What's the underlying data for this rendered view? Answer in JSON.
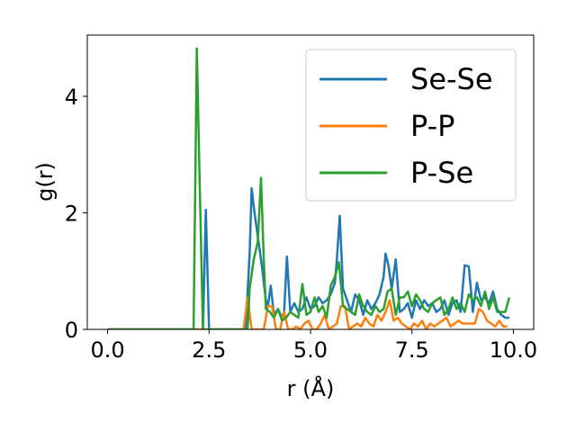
{
  "chart_data": {
    "type": "line",
    "title": "",
    "xlabel": "r (Å)",
    "ylabel": "g(r)",
    "xlim": [
      -0.5,
      10.5
    ],
    "ylim": [
      0,
      5.05
    ],
    "xticks": [
      "0.0",
      "2.5",
      "5.0",
      "7.5",
      "10.0"
    ],
    "xtick_values": [
      0,
      2.5,
      5,
      7.5,
      10
    ],
    "yticks": [
      "0",
      "2",
      "4"
    ],
    "ytick_values": [
      0,
      2,
      4
    ],
    "grid": false,
    "legend_position": "top-right",
    "series": [
      {
        "name": "Se-Se",
        "color": "#1f77b4",
        "x": [
          0,
          2.1,
          2.2,
          2.3,
          2.35,
          2.42,
          2.5,
          2.55,
          3.4,
          3.5,
          3.55,
          3.62,
          3.7,
          3.8,
          3.9,
          3.95,
          4.02,
          4.1,
          4.2,
          4.3,
          4.35,
          4.42,
          4.5,
          4.6,
          4.7,
          4.8,
          4.9,
          5.0,
          5.1,
          5.2,
          5.3,
          5.4,
          5.5,
          5.6,
          5.65,
          5.72,
          5.8,
          5.9,
          6.0,
          6.1,
          6.2,
          6.3,
          6.4,
          6.5,
          6.6,
          6.7,
          6.8,
          6.85,
          6.92,
          7.0,
          7.1,
          7.2,
          7.3,
          7.4,
          7.5,
          7.6,
          7.7,
          7.8,
          7.9,
          8.0,
          8.1,
          8.2,
          8.3,
          8.4,
          8.5,
          8.6,
          8.7,
          8.8,
          8.9,
          9.0,
          9.1,
          9.2,
          9.3,
          9.4,
          9.5,
          9.6,
          9.7,
          9.8,
          9.9
        ],
        "y": [
          0,
          0,
          0,
          0,
          0,
          2.05,
          0,
          0,
          0,
          1.3,
          2.42,
          2.0,
          1.6,
          1.1,
          0.5,
          0.4,
          0.75,
          0.25,
          0.35,
          0.2,
          0.3,
          1.25,
          0.3,
          0.45,
          0.3,
          0.35,
          0.55,
          0.35,
          0.4,
          0.55,
          0.45,
          0.5,
          0.6,
          0.8,
          1.2,
          1.95,
          0.7,
          0.5,
          0.3,
          0.6,
          0.5,
          0.25,
          0.5,
          0.35,
          0.45,
          0.6,
          0.9,
          1.3,
          1.1,
          0.7,
          1.2,
          0.3,
          0.35,
          0.45,
          0.2,
          0.5,
          0.35,
          0.5,
          0.4,
          0.45,
          0.3,
          0.35,
          0.5,
          0.25,
          0.45,
          0.5,
          0.3,
          1.1,
          1.08,
          0.3,
          0.8,
          0.5,
          0.55,
          0.45,
          0.65,
          0.35,
          0.25,
          0.2,
          0.2
        ]
      },
      {
        "name": "P-P",
        "color": "#ff7f0e",
        "x": [
          0,
          3.35,
          3.45,
          3.55,
          3.65,
          3.75,
          3.85,
          3.95,
          4.05,
          4.15,
          4.25,
          4.35,
          4.45,
          4.55,
          4.65,
          4.75,
          4.85,
          4.95,
          5.05,
          5.15,
          5.25,
          5.35,
          5.45,
          5.55,
          5.65,
          5.75,
          5.85,
          5.95,
          6.05,
          6.15,
          6.25,
          6.35,
          6.45,
          6.55,
          6.65,
          6.75,
          6.85,
          6.95,
          7.05,
          7.15,
          7.25,
          7.35,
          7.45,
          7.55,
          7.65,
          7.75,
          7.85,
          7.95,
          8.05,
          8.15,
          8.25,
          8.35,
          8.45,
          8.55,
          8.65,
          8.75,
          8.85,
          8.95,
          9.05,
          9.15,
          9.25,
          9.35,
          9.45,
          9.55,
          9.65,
          9.75,
          9.85
        ],
        "y": [
          0,
          0,
          0.55,
          0,
          0,
          0,
          0,
          0.4,
          0.4,
          0,
          0,
          0.3,
          0,
          0,
          0.05,
          0,
          0.1,
          0.15,
          0,
          0,
          0.1,
          0.25,
          0,
          0.05,
          0.1,
          0.4,
          0.4,
          0,
          0.05,
          0.1,
          0.05,
          0.2,
          0.1,
          0.05,
          0.25,
          0.15,
          0.3,
          0.5,
          0.15,
          0.2,
          0.1,
          0.05,
          0,
          0.1,
          0.05,
          0.15,
          0,
          0.1,
          0.05,
          0.1,
          0.15,
          0.2,
          0.05,
          0.1,
          0.15,
          0.1,
          0.1,
          0.1,
          0.1,
          0.35,
          0.3,
          0.15,
          0.1,
          0.05,
          0.15,
          0.05,
          0.05
        ]
      },
      {
        "name": "P-Se",
        "color": "#2ca02c",
        "x": [
          0,
          2.12,
          2.2,
          2.27,
          2.35,
          2.42,
          3.45,
          3.5,
          3.6,
          3.7,
          3.78,
          3.85,
          3.9,
          4.0,
          4.1,
          4.2,
          4.3,
          4.4,
          4.5,
          4.6,
          4.7,
          4.8,
          4.9,
          5.0,
          5.1,
          5.2,
          5.3,
          5.4,
          5.5,
          5.6,
          5.7,
          5.8,
          5.9,
          6.0,
          6.1,
          6.2,
          6.3,
          6.4,
          6.5,
          6.6,
          6.7,
          6.8,
          6.9,
          7.0,
          7.1,
          7.2,
          7.3,
          7.4,
          7.5,
          7.6,
          7.7,
          7.8,
          7.9,
          8.0,
          8.1,
          8.2,
          8.3,
          8.4,
          8.5,
          8.6,
          8.7,
          8.8,
          8.9,
          9.0,
          9.1,
          9.2,
          9.3,
          9.4,
          9.5,
          9.6,
          9.7,
          9.8,
          9.9
        ],
        "y": [
          0,
          0,
          4.82,
          2.5,
          0,
          0,
          0,
          0.7,
          1.2,
          1.5,
          2.6,
          1.2,
          0.35,
          0.3,
          0.2,
          0.35,
          0.15,
          0.2,
          0.3,
          0.25,
          0.2,
          0.78,
          0.25,
          0.3,
          0.55,
          0.3,
          0.4,
          0.2,
          0.75,
          0.9,
          1.15,
          0.4,
          0.35,
          0.3,
          0.25,
          0.6,
          0.4,
          0.3,
          0.25,
          0.4,
          0.3,
          0.35,
          0.65,
          0.7,
          0.25,
          0.55,
          0.55,
          0.65,
          0.4,
          0.6,
          0.5,
          0.35,
          0.3,
          0.45,
          0.5,
          0.55,
          0.25,
          0.35,
          0.55,
          0.35,
          0.45,
          0.3,
          0.6,
          0.5,
          0.55,
          0.4,
          0.65,
          0.35,
          0.55,
          0.3,
          0.3,
          0.3,
          0.55
        ]
      }
    ]
  }
}
